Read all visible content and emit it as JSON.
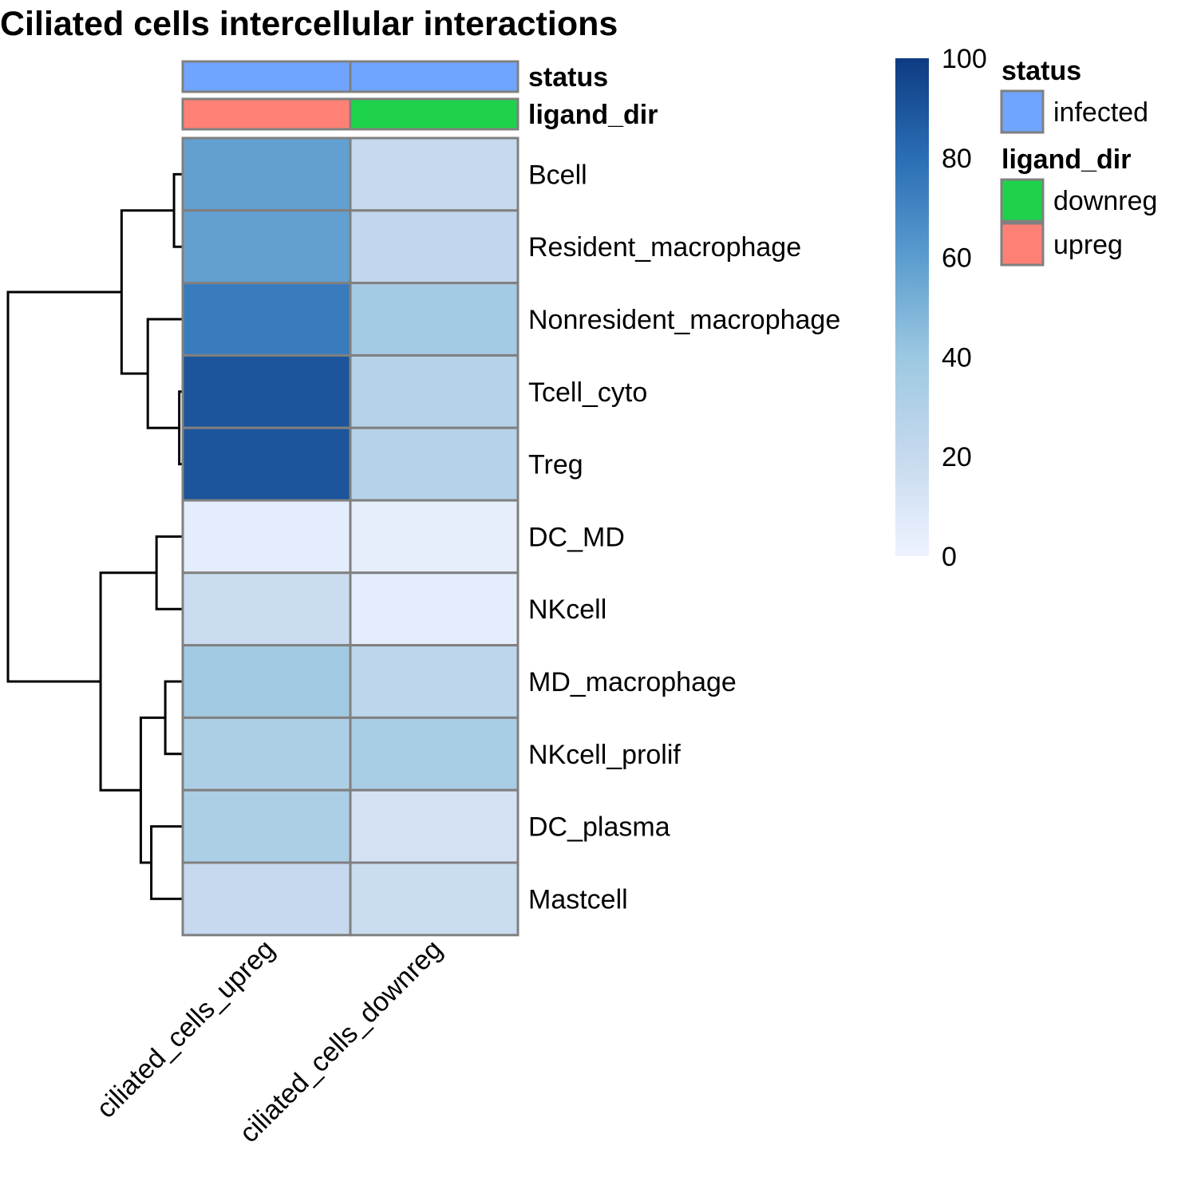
{
  "chart_data": {
    "type": "heatmap",
    "title": "Ciliated cells intercellular interactions",
    "rows": [
      "Bcell",
      "Resident_macrophage",
      "Nonresident_macrophage",
      "Tcell_cyto",
      "Treg",
      "DC_MD",
      "NKcell",
      "MD_macrophage",
      "NKcell_prolif",
      "DC_plasma",
      "Mastcell"
    ],
    "columns": [
      "ciliated_cells_upreg",
      "ciliated_cells_downreg"
    ],
    "values": [
      [
        58,
        20
      ],
      [
        58,
        22
      ],
      [
        74,
        36
      ],
      [
        90,
        28
      ],
      [
        90,
        28
      ],
      [
        5,
        4
      ],
      [
        18,
        5
      ],
      [
        37,
        24
      ],
      [
        32,
        34
      ],
      [
        32,
        13
      ],
      [
        20,
        18
      ]
    ],
    "color_scale": {
      "min": 0,
      "max": 100,
      "ticks": [
        0,
        20,
        40,
        60,
        80,
        100
      ],
      "stops": [
        "#EEF3FF",
        "#C6D9EE",
        "#9CC8E1",
        "#5B9CCF",
        "#2A6EB5",
        "#0E3B82"
      ]
    },
    "annotations": [
      {
        "name": "status",
        "values": [
          "infected",
          "infected"
        ]
      },
      {
        "name": "ligand_dir",
        "values": [
          "upreg",
          "downreg"
        ]
      }
    ],
    "legend": [
      {
        "title": "status",
        "items": [
          {
            "label": "infected",
            "color": "#6FA5FF"
          }
        ]
      },
      {
        "title": "ligand_dir",
        "items": [
          {
            "label": "downreg",
            "color": "#1ED34B"
          },
          {
            "label": "upreg",
            "color": "#FF8175"
          }
        ]
      }
    ],
    "row_dendrogram": [
      [
        0,
        1
      ],
      [
        3,
        4
      ],
      [
        2,
        12
      ],
      [
        11,
        13
      ],
      [
        5,
        6
      ],
      [
        7,
        8
      ],
      [
        9,
        10
      ],
      [
        16,
        17
      ],
      [
        15,
        18
      ],
      [
        14,
        19
      ]
    ],
    "dendrogram_heights": [
      0.05,
      0.02,
      0.2,
      0.35,
      0.15,
      0.1,
      0.18,
      0.24,
      0.47,
      1.0
    ]
  }
}
